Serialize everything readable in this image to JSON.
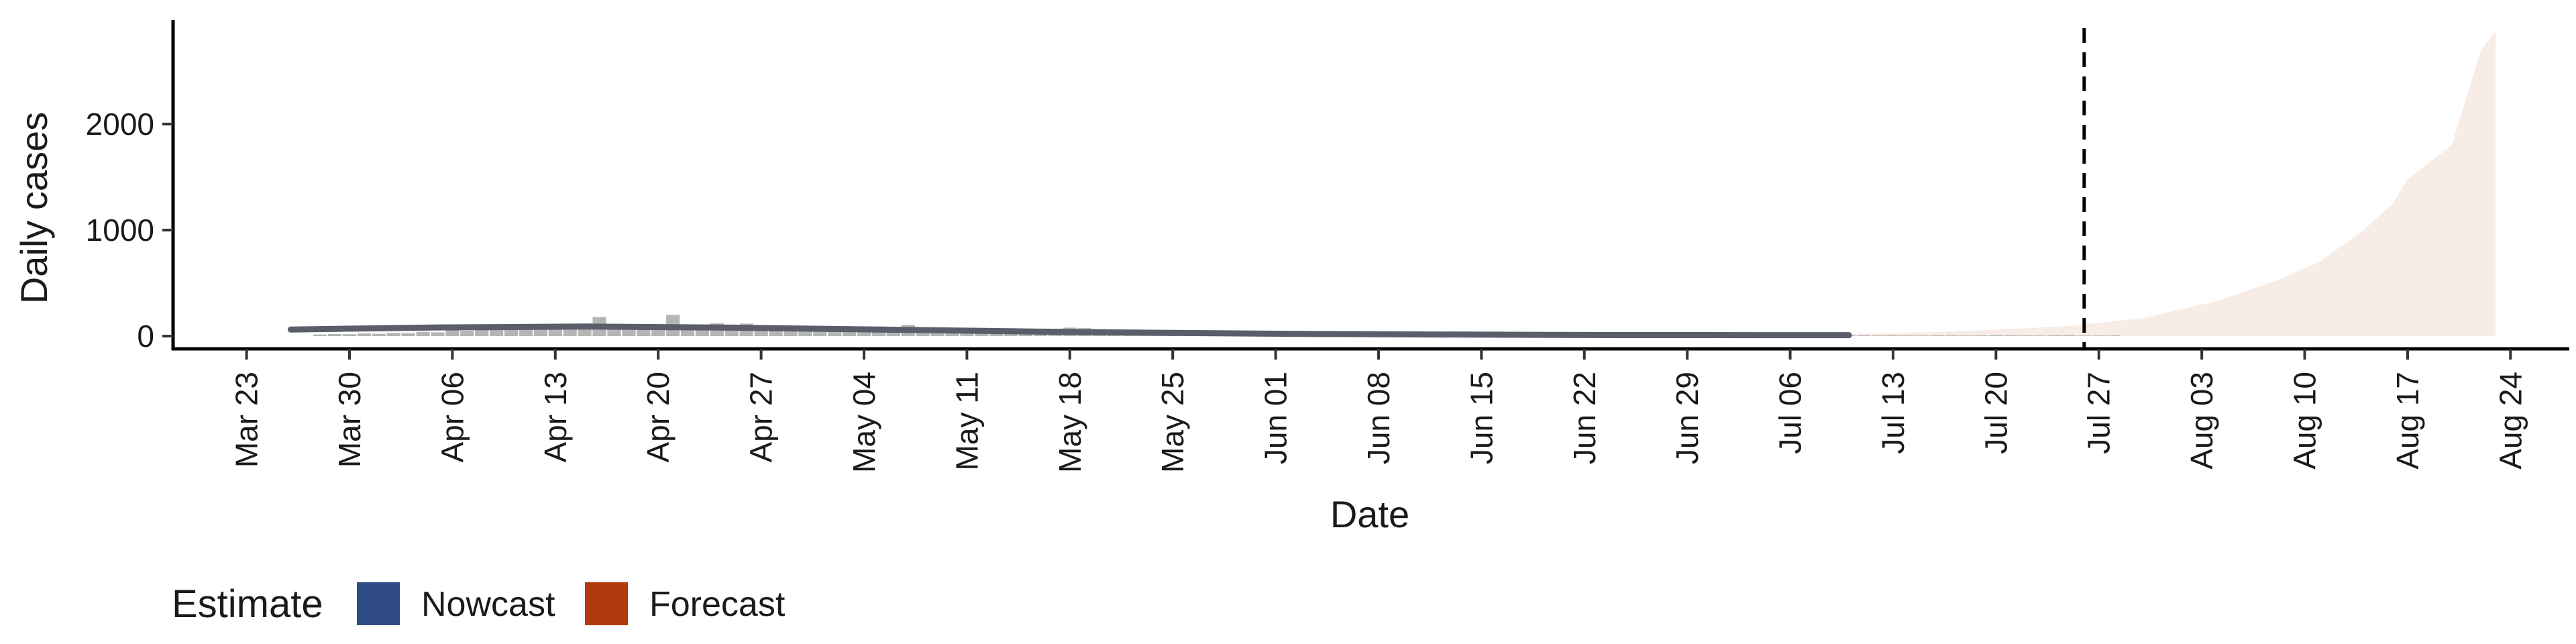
{
  "chart_data": {
    "type": "area",
    "xlabel": "Date",
    "ylabel": "Daily cases",
    "x_range": [
      "2020-03-18",
      "2020-08-28"
    ],
    "ylim": [
      -120,
      2980
    ],
    "y_ticks": [
      0,
      1000,
      2000
    ],
    "x_ticks": [
      "2020-03-23",
      "2020-03-30",
      "2020-04-06",
      "2020-04-13",
      "2020-04-20",
      "2020-04-27",
      "2020-05-04",
      "2020-05-11",
      "2020-05-18",
      "2020-05-25",
      "2020-06-01",
      "2020-06-08",
      "2020-06-15",
      "2020-06-22",
      "2020-06-29",
      "2020-07-06",
      "2020-07-13",
      "2020-07-20",
      "2020-07-27",
      "2020-08-03",
      "2020-08-10",
      "2020-08-17",
      "2020-08-24"
    ],
    "x_tick_labels": [
      "Mar 23",
      "Mar 30",
      "Apr 06",
      "Apr 13",
      "Apr 20",
      "Apr 27",
      "May 04",
      "May 11",
      "May 18",
      "May 25",
      "Jun 01",
      "Jun 08",
      "Jun 15",
      "Jun 22",
      "Jun 29",
      "Jul 06",
      "Jul 13",
      "Jul 20",
      "Jul 27",
      "Aug 03",
      "Aug 10",
      "Aug 17",
      "Aug 24"
    ],
    "grid": false,
    "forecast_start": "2020-07-26",
    "reported_cases": {
      "start_date": "2020-03-28",
      "values": [
        15,
        20,
        18,
        25,
        22,
        30,
        28,
        40,
        35,
        55,
        50,
        60,
        70,
        65,
        75,
        80,
        70,
        85,
        90,
        180,
        95,
        88,
        80,
        75,
        200,
        110,
        92,
        120,
        85,
        118,
        80,
        70,
        75,
        82,
        70,
        65,
        80,
        72,
        90,
        60,
        105,
        70,
        60,
        55,
        58,
        50,
        48,
        45,
        50,
        55,
        70,
        80,
        75,
        65,
        45,
        50,
        40,
        35,
        38,
        30,
        30,
        28,
        30,
        25,
        22,
        25,
        20,
        22,
        18,
        20,
        18,
        16,
        15,
        18,
        14,
        15,
        14,
        12,
        12,
        13,
        12,
        11,
        10,
        12,
        10,
        9,
        10,
        9,
        8,
        10,
        8,
        8,
        9,
        8,
        10,
        8,
        7,
        8,
        8,
        9,
        7,
        8,
        7,
        6,
        8,
        7,
        6,
        7,
        6,
        6,
        7,
        6,
        5,
        6,
        8,
        7,
        6,
        6,
        7,
        8,
        6,
        5,
        6
      ]
    },
    "series": [
      {
        "name": "Nowcast",
        "color": "#1f2a44",
        "x": [
          "2020-03-26",
          "2020-04-05",
          "2020-04-15",
          "2020-04-25",
          "2020-05-05",
          "2020-05-15",
          "2020-05-25",
          "2020-06-04",
          "2020-06-14",
          "2020-06-24",
          "2020-07-04",
          "2020-07-10"
        ],
        "y": [
          62,
          82,
          90,
          80,
          62,
          44,
          30,
          20,
          14,
          10,
          9,
          9
        ],
        "band_upper": [
          80,
          100,
          108,
          96,
          76,
          56,
          40,
          28,
          20,
          16,
          15,
          16
        ],
        "band_lower": [
          46,
          66,
          74,
          66,
          50,
          34,
          22,
          14,
          9,
          6,
          5,
          4
        ]
      },
      {
        "name": "Forecast",
        "color": "#b33a0d",
        "x": [
          "2020-07-10",
          "2020-07-15",
          "2020-07-20",
          "2020-07-25",
          "2020-07-30",
          "2020-08-04",
          "2020-08-08",
          "2020-08-11",
          "2020-08-14",
          "2020-08-16",
          "2020-08-17",
          "2020-08-18",
          "2020-08-20",
          "2020-08-22",
          "2020-08-23"
        ],
        "band_upper": [
          20,
          35,
          60,
          95,
          170,
          330,
          520,
          700,
          1000,
          1250,
          1480,
          1590,
          1800,
          2700,
          2880
        ],
        "band_lower": [
          0,
          0,
          0,
          0,
          0,
          0,
          0,
          0,
          0,
          0,
          0,
          0,
          0,
          0,
          0
        ]
      }
    ],
    "legend": {
      "position": "bottom",
      "title": "Estimate",
      "entries": [
        {
          "label": "Nowcast",
          "color": "#2f4b85"
        },
        {
          "label": "Forecast",
          "color": "#b33a0d"
        }
      ]
    }
  }
}
